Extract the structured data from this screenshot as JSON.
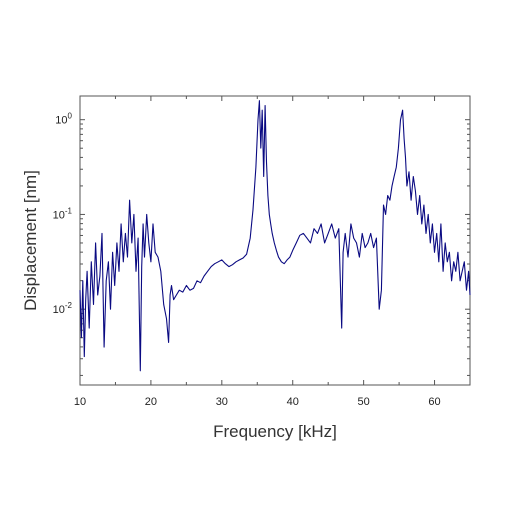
{
  "chart_data": {
    "type": "line",
    "title": "",
    "xlabel": "Frequency [kHz]",
    "ylabel": "Displacement [nm]",
    "xlim": [
      10,
      65
    ],
    "ylim_log10": [
      -2.8,
      0.25
    ],
    "y_scale": "log",
    "grid": false,
    "legend": "none",
    "x_ticks": [
      10,
      20,
      30,
      40,
      50,
      60
    ],
    "x_tick_labels": [
      "10",
      "20",
      "30",
      "40",
      "50",
      "60"
    ],
    "y_ticks_log10": [
      0,
      -1,
      -2
    ],
    "y_tick_labels": [
      {
        "base": "10",
        "exp": "0"
      },
      {
        "base": "10",
        "exp": "-1"
      },
      {
        "base": "10",
        "exp": "-2"
      }
    ],
    "series": [
      {
        "color": "#0a0a82",
        "x": [
          10.0,
          10.2,
          10.4,
          10.6,
          10.8,
          11.0,
          11.3,
          11.6,
          11.9,
          12.2,
          12.5,
          12.8,
          13.1,
          13.4,
          13.7,
          14.0,
          14.3,
          14.6,
          14.9,
          15.2,
          15.5,
          15.8,
          16.1,
          16.4,
          16.7,
          17.0,
          17.3,
          17.6,
          17.9,
          18.2,
          18.5,
          18.7,
          18.9,
          19.1,
          19.4,
          19.7,
          20.0,
          20.3,
          20.6,
          21.0,
          21.4,
          21.8,
          22.2,
          22.5,
          22.7,
          22.9,
          23.2,
          23.6,
          24.0,
          24.5,
          25.0,
          25.5,
          26.0,
          26.5,
          27.0,
          27.5,
          28.0,
          28.5,
          29.0,
          29.5,
          30.0,
          30.5,
          31.0,
          31.5,
          32.0,
          32.5,
          33.0,
          33.5,
          34.0,
          34.4,
          34.8,
          35.1,
          35.3,
          35.5,
          35.7,
          35.9,
          36.1,
          36.3,
          36.5,
          36.7,
          36.9,
          37.1,
          37.4,
          37.7,
          38.0,
          38.4,
          38.8,
          39.2,
          39.6,
          40.0,
          40.5,
          41.0,
          41.5,
          42.0,
          42.5,
          43.0,
          43.5,
          44.0,
          44.5,
          45.0,
          45.5,
          46.0,
          46.5,
          46.9,
          47.1,
          47.4,
          47.8,
          48.2,
          48.6,
          49.0,
          49.4,
          49.8,
          50.2,
          50.6,
          51.0,
          51.4,
          51.8,
          52.2,
          52.5,
          52.8,
          53.1,
          53.4,
          53.7,
          54.0,
          54.3,
          54.6,
          54.9,
          55.2,
          55.5,
          55.7,
          55.9,
          56.1,
          56.4,
          56.7,
          57.0,
          57.3,
          57.6,
          57.9,
          58.2,
          58.5,
          58.8,
          59.1,
          59.4,
          59.7,
          60.0,
          60.3,
          60.6,
          60.9,
          61.2,
          61.5,
          61.8,
          62.1,
          62.4,
          62.7,
          63.0,
          63.3,
          63.6,
          63.9,
          64.2,
          64.5,
          64.8,
          65.0
        ],
        "y_log10": [
          -1.8,
          -2.3,
          -1.7,
          -2.5,
          -1.9,
          -1.6,
          -2.2,
          -1.5,
          -1.95,
          -1.3,
          -1.85,
          -1.65,
          -1.2,
          -2.4,
          -1.7,
          -1.5,
          -2.0,
          -1.4,
          -1.75,
          -1.3,
          -1.6,
          -1.1,
          -1.5,
          -1.2,
          -1.45,
          -0.85,
          -1.3,
          -1.0,
          -1.6,
          -1.25,
          -2.65,
          -1.55,
          -1.1,
          -1.45,
          -1.0,
          -1.3,
          -1.5,
          -1.1,
          -1.4,
          -1.45,
          -1.6,
          -1.95,
          -2.1,
          -2.35,
          -1.85,
          -1.75,
          -1.9,
          -1.85,
          -1.8,
          -1.82,
          -1.75,
          -1.8,
          -1.78,
          -1.7,
          -1.72,
          -1.65,
          -1.6,
          -1.55,
          -1.52,
          -1.5,
          -1.48,
          -1.52,
          -1.55,
          -1.53,
          -1.5,
          -1.48,
          -1.46,
          -1.42,
          -1.25,
          -0.95,
          -0.5,
          0.0,
          0.2,
          -0.3,
          0.1,
          -0.6,
          0.15,
          -0.45,
          -0.8,
          -1.0,
          -1.1,
          -1.2,
          -1.3,
          -1.38,
          -1.45,
          -1.5,
          -1.52,
          -1.48,
          -1.45,
          -1.38,
          -1.3,
          -1.22,
          -1.2,
          -1.25,
          -1.3,
          -1.15,
          -1.2,
          -1.1,
          -1.3,
          -1.2,
          -1.1,
          -1.25,
          -1.15,
          -2.2,
          -1.4,
          -1.2,
          -1.45,
          -1.1,
          -1.25,
          -1.3,
          -1.45,
          -1.2,
          -1.35,
          -1.3,
          -1.2,
          -1.35,
          -1.25,
          -2.0,
          -1.8,
          -0.9,
          -1.0,
          -0.8,
          -0.85,
          -0.7,
          -0.6,
          -0.5,
          -0.3,
          0.0,
          0.1,
          -0.2,
          -0.4,
          -0.7,
          -0.55,
          -0.85,
          -0.6,
          -0.75,
          -1.0,
          -0.8,
          -1.1,
          -0.9,
          -1.2,
          -1.0,
          -1.3,
          -1.1,
          -1.4,
          -1.2,
          -1.5,
          -1.1,
          -1.6,
          -1.3,
          -1.5,
          -1.4,
          -1.7,
          -1.5,
          -1.6,
          -1.4,
          -1.7,
          -1.6,
          -1.5,
          -1.8,
          -1.6,
          -1.85
        ]
      }
    ]
  }
}
